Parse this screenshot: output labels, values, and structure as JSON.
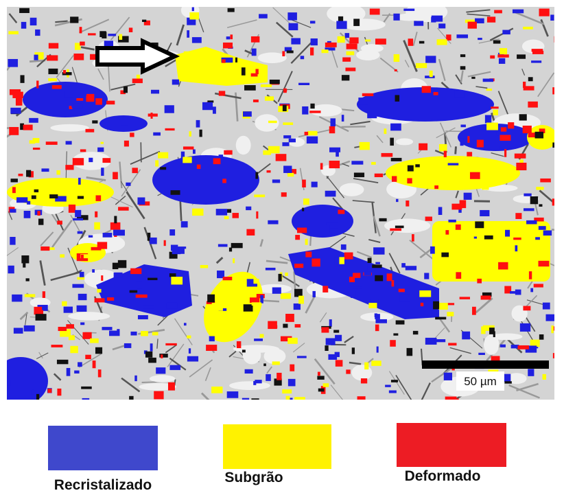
{
  "scale_bar": {
    "label": "50 µm"
  },
  "legend": [
    {
      "label": "Recristalizado",
      "color": "#3f48cc"
    },
    {
      "label": "Subgrão",
      "color": "#fff200"
    },
    {
      "label": "Deformado",
      "color": "#ed1c24"
    }
  ]
}
